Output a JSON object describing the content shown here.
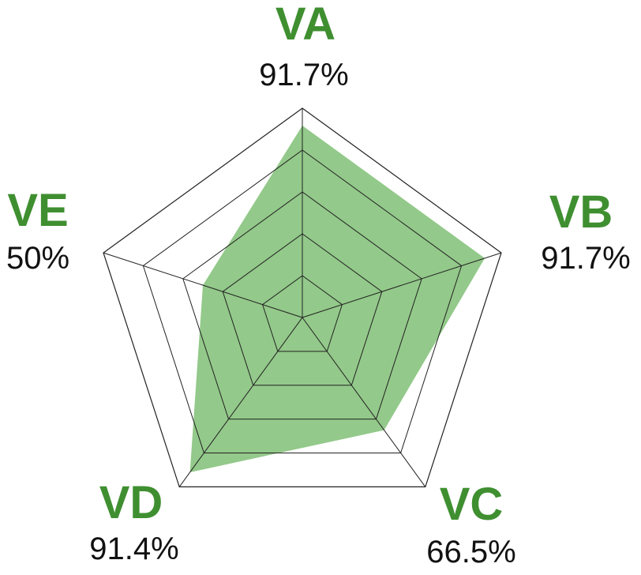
{
  "chart_data": {
    "type": "radar",
    "axes": [
      "VA",
      "VB",
      "VC",
      "VD",
      "VE"
    ],
    "values": [
      91.7,
      91.7,
      66.5,
      91.4,
      50
    ],
    "value_labels": [
      "91.7%",
      "91.7%",
      "66.5%",
      "91.4%",
      "50%"
    ],
    "range": [
      0,
      100
    ],
    "grid_levels": 5,
    "fill_color": "#93c98a",
    "grid_color": "#222222",
    "label_color": "#3f8f31"
  }
}
